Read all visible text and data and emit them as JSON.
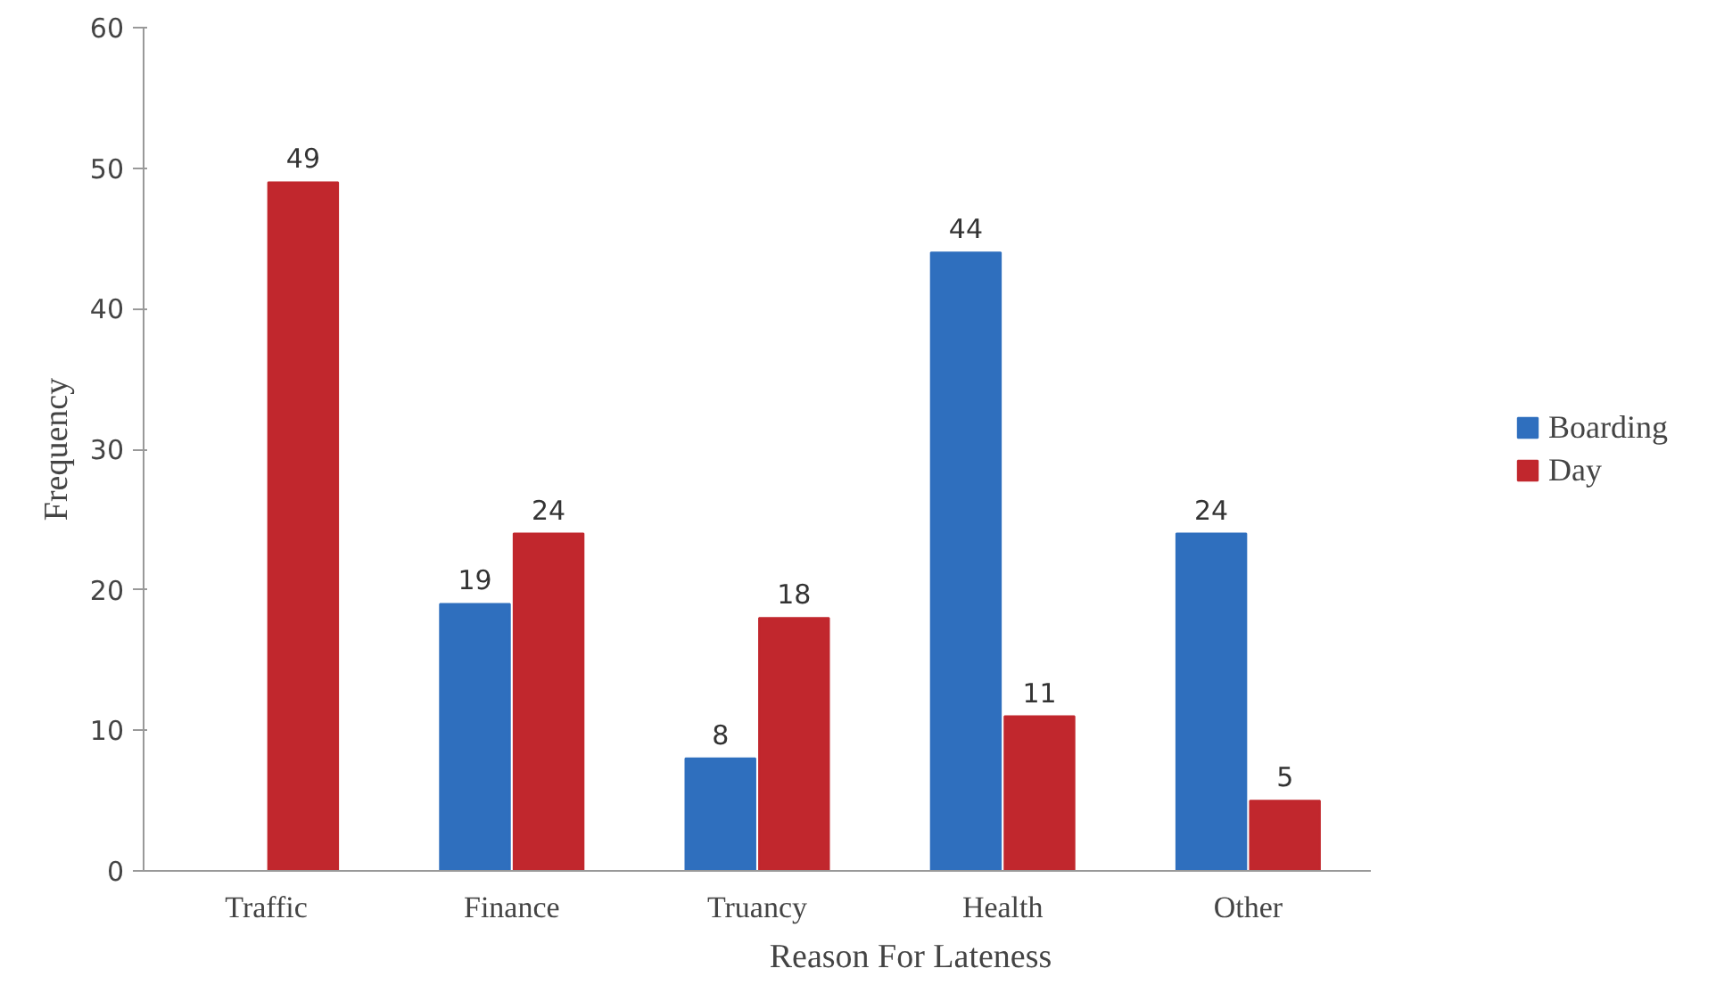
{
  "chart_data": {
    "type": "bar",
    "xlabel": "Reason For Lateness",
    "ylabel": "Frequency",
    "categories": [
      "Traffic",
      "Finance",
      "Truancy",
      "Health",
      "Other"
    ],
    "series": [
      {
        "name": "Boarding",
        "color": "#2f6fbe",
        "values": [
          null,
          19,
          8,
          44,
          24
        ]
      },
      {
        "name": "Day",
        "color": "#c1272d",
        "values": [
          49,
          24,
          18,
          11,
          5
        ]
      }
    ],
    "ylim": [
      0,
      60
    ],
    "yticks": [
      0,
      10,
      20,
      30,
      40,
      50,
      60
    ],
    "data_labels": true,
    "grid": false,
    "legend": "right"
  }
}
